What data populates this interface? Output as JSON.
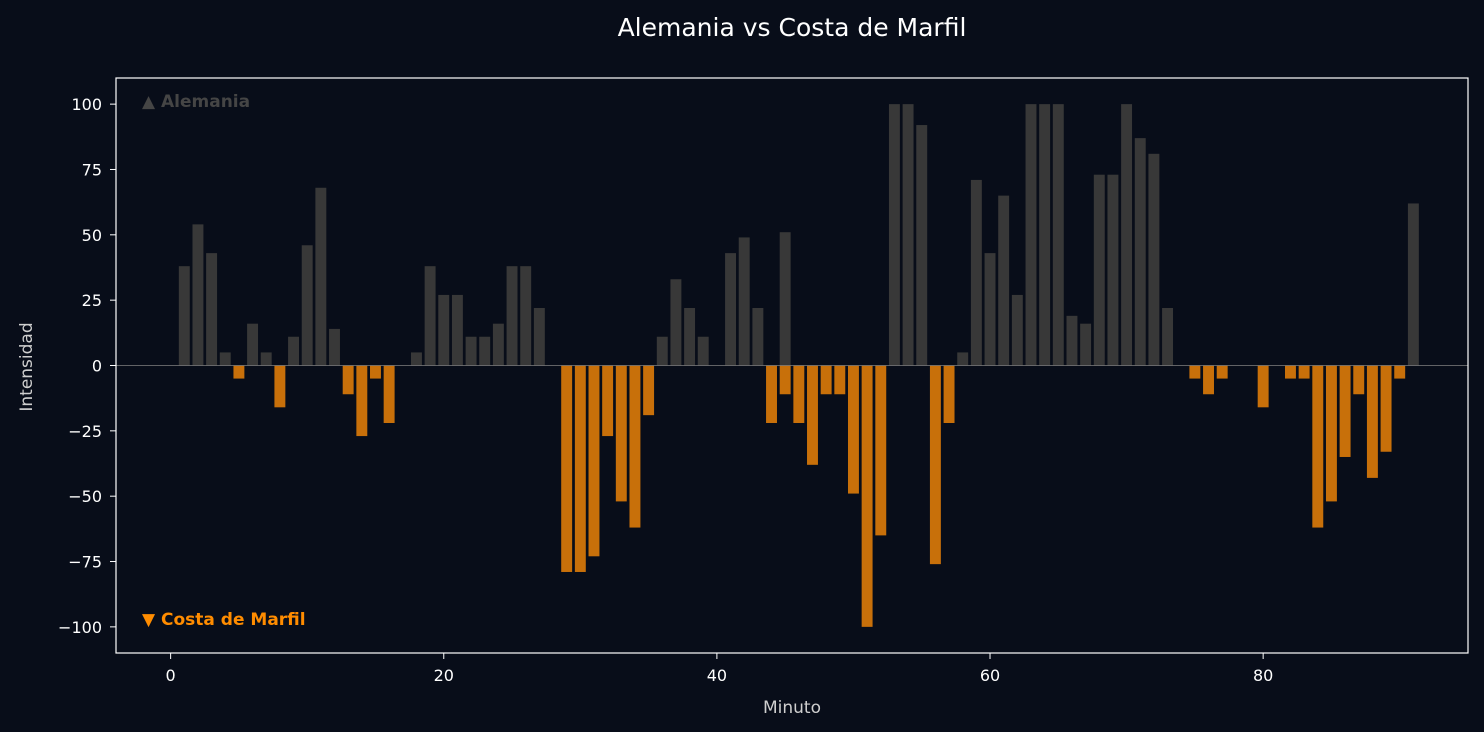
{
  "chart_data": {
    "type": "bar",
    "title": "Alemania vs Costa de Marfil",
    "xlabel": "Minuto",
    "ylabel": "Intensidad",
    "xlim": [
      -4,
      95
    ],
    "ylim": [
      -110,
      110
    ],
    "xticks": [
      0,
      20,
      40,
      60,
      80
    ],
    "xtick_labels": [
      "0",
      "20",
      "40",
      "60",
      "80"
    ],
    "yticks": [
      100,
      75,
      50,
      25,
      0,
      -25,
      -50,
      -75,
      -100
    ],
    "ytick_labels": [
      "100",
      "75",
      "50",
      "25",
      "0",
      "−25",
      "−50",
      "−75",
      "−100"
    ],
    "grid": false,
    "legend": [
      {
        "label": "▲ Alemania",
        "position": "top-left",
        "color": "#454545"
      },
      {
        "label": "▼ Costa de Marfil",
        "position": "bottom-left",
        "color": "#ff8c00"
      }
    ],
    "series": [
      {
        "name": "Alemania",
        "color": "#383838",
        "x": [
          1,
          2,
          3,
          4,
          6,
          7,
          9,
          10,
          11,
          12,
          18,
          19,
          20,
          21,
          22,
          23,
          24,
          25,
          26,
          27,
          36,
          37,
          38,
          39,
          41,
          42,
          43,
          45,
          53,
          54,
          55,
          58,
          59,
          60,
          61,
          62,
          63,
          64,
          65,
          66,
          67,
          68,
          69,
          70,
          71,
          72,
          73,
          91
        ],
        "values": [
          38,
          54,
          43,
          5,
          16,
          5,
          11,
          46,
          68,
          14,
          5,
          38,
          27,
          27,
          11,
          11,
          16,
          38,
          38,
          22,
          11,
          33,
          22,
          11,
          43,
          49,
          22,
          51,
          100,
          100,
          92,
          5,
          71,
          43,
          65,
          27,
          100,
          100,
          100,
          19,
          16,
          73,
          73,
          100,
          87,
          81,
          22,
          62
        ]
      },
      {
        "name": "Costa de Marfil",
        "color": "#c8700a",
        "x": [
          5,
          8,
          13,
          14,
          15,
          16,
          29,
          30,
          31,
          32,
          33,
          34,
          35,
          44,
          45,
          46,
          47,
          48,
          49,
          50,
          51,
          52,
          56,
          57,
          75,
          76,
          77,
          80,
          82,
          83,
          84,
          85,
          86,
          87,
          88,
          89,
          90
        ],
        "values": [
          -5,
          -16,
          -11,
          -27,
          -5,
          -22,
          -79,
          -79,
          -73,
          -27,
          -52,
          -62,
          -19,
          -22,
          -11,
          -22,
          -38,
          -11,
          -11,
          -49,
          -100,
          -65,
          -76,
          -22,
          -5,
          -11,
          -5,
          -16,
          -5,
          -5,
          -62,
          -52,
          -35,
          -11,
          -43,
          -33,
          -5
        ]
      }
    ],
    "colors": {
      "background": "#080d19",
      "axes_frame": "#ffffff",
      "zero_line": "#808080"
    }
  }
}
